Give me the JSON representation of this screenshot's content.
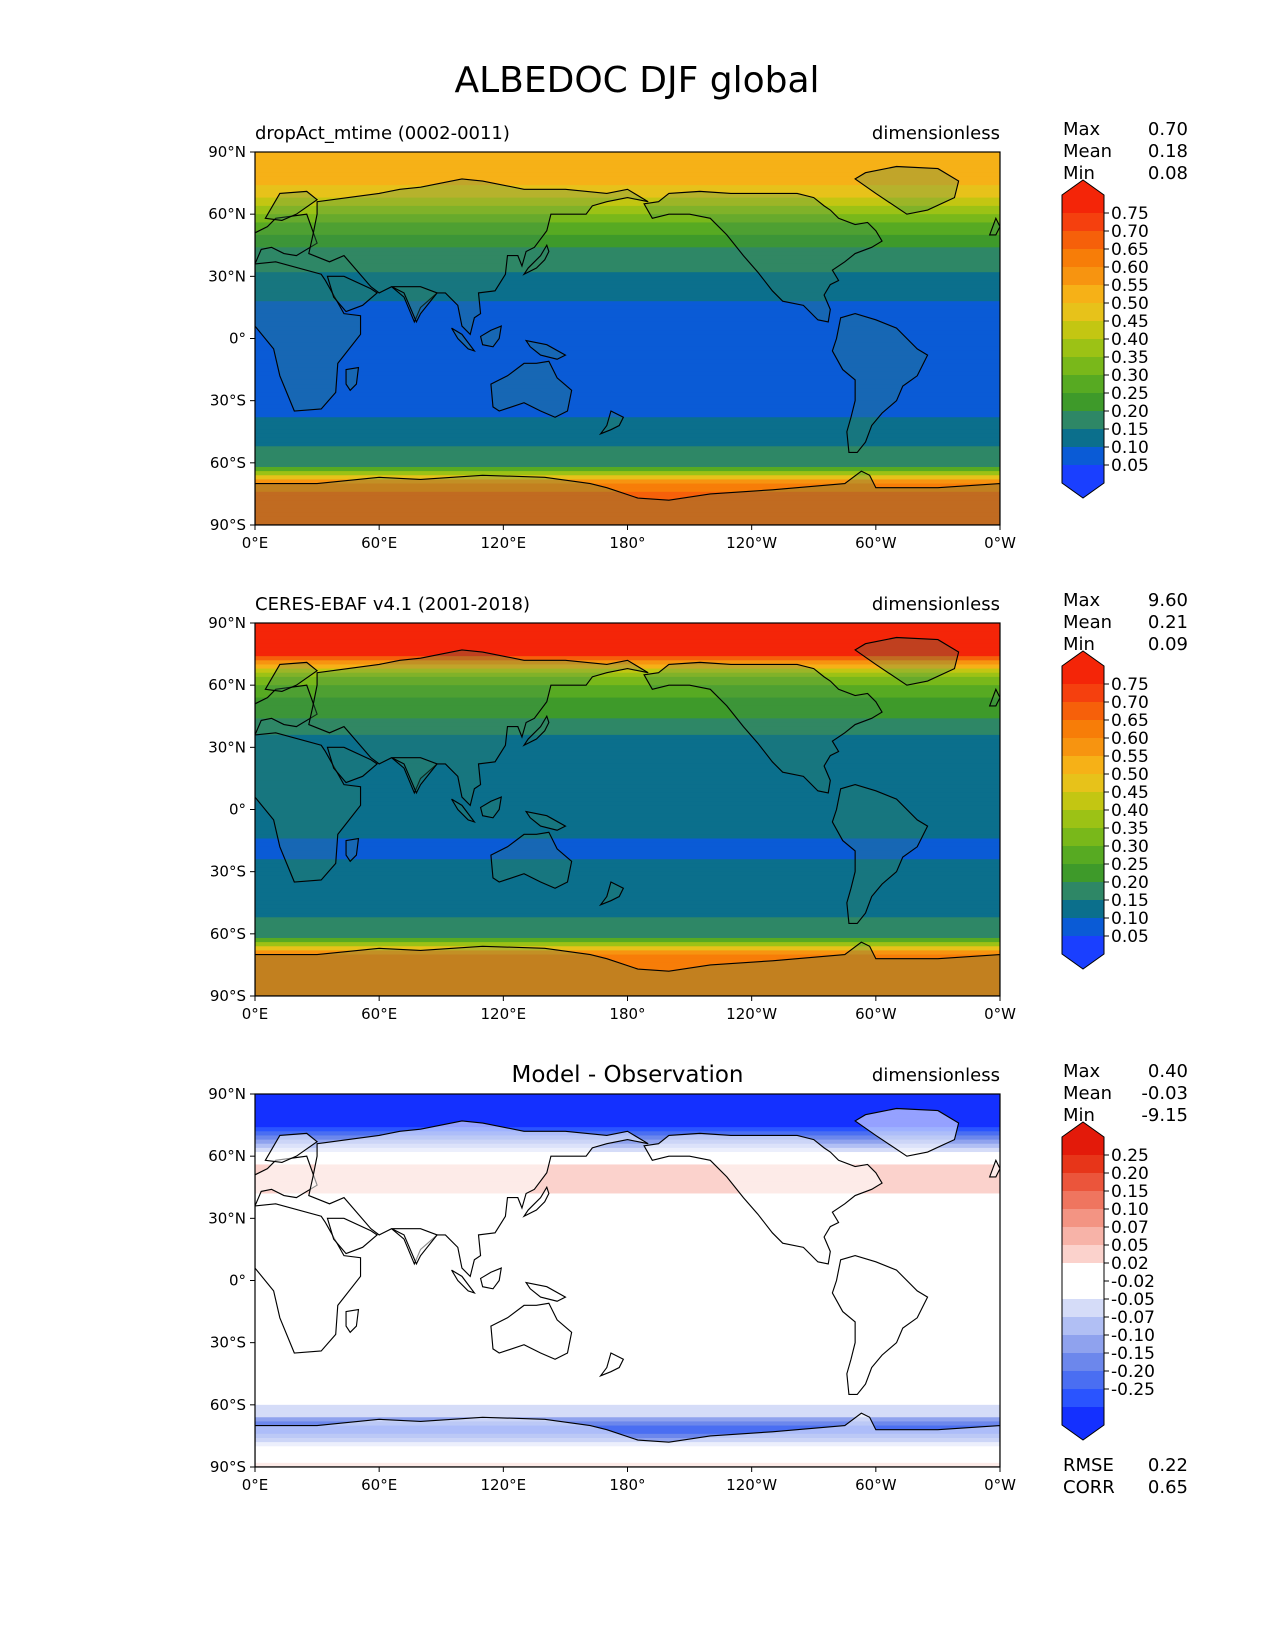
{
  "figure_title": "ALBEDOC DJF global",
  "colors": {
    "model_levels": [
      "#1a3fff",
      "#0a5bd6",
      "#0b6f8c",
      "#2e8766",
      "#3e9a2a",
      "#57aa22",
      "#79b81a",
      "#9cc215",
      "#c3c612",
      "#e7c21a",
      "#f6b117",
      "#f79410",
      "#f77d08",
      "#f6600a",
      "#f5400e",
      "#f42508"
    ],
    "diff_levels": [
      "#1430ff",
      "#2a54ff",
      "#4a6ef2",
      "#6c87ec",
      "#8fa2ee",
      "#b1bff4",
      "#d5dcf8",
      "#ffffff",
      "#ffffff",
      "#fbd2cc",
      "#f7b3a8",
      "#f39483",
      "#ef755f",
      "#eb553b",
      "#e73519",
      "#e31a0a"
    ],
    "land_outline": "#000000"
  },
  "chart_data": [
    {
      "type": "heatmap",
      "title_left": "dropAct_mtime (0002-0011)",
      "title_right": "dimensionless",
      "x_ticks": [
        "0°E",
        "60°E",
        "120°E",
        "180°",
        "120°W",
        "60°W",
        "0°W"
      ],
      "y_ticks": [
        "90°N",
        "60°N",
        "30°N",
        "0°",
        "30°S",
        "60°S",
        "90°S"
      ],
      "stats": [
        {
          "label": "Max",
          "value": "0.70"
        },
        {
          "label": "Mean",
          "value": "0.18"
        },
        {
          "label": "Min",
          "value": "0.08"
        }
      ],
      "colorbar_ticks": [
        "0.75",
        "0.70",
        "0.65",
        "0.60",
        "0.55",
        "0.50",
        "0.45",
        "0.40",
        "0.35",
        "0.30",
        "0.25",
        "0.20",
        "0.15",
        "0.10",
        "0.05"
      ],
      "colorbar_extend": "both",
      "zonal_mean_profile": {
        "lat": [
          -90,
          -80,
          -70,
          -62,
          -55,
          -45,
          -35,
          -20,
          0,
          15,
          25,
          35,
          45,
          55,
          65,
          75,
          82
        ],
        "value": [
          0.66,
          0.67,
          0.64,
          0.2,
          0.16,
          0.12,
          0.09,
          0.08,
          0.08,
          0.09,
          0.12,
          0.16,
          0.2,
          0.3,
          0.42,
          0.5,
          0.52
        ]
      }
    },
    {
      "type": "heatmap",
      "title_left": "CERES-EBAF v4.1 (2001-2018)",
      "title_right": "dimensionless",
      "x_ticks": [
        "0°E",
        "60°E",
        "120°E",
        "180°",
        "120°W",
        "60°W",
        "0°W"
      ],
      "y_ticks": [
        "90°N",
        "60°N",
        "30°N",
        "0°",
        "30°S",
        "60°S",
        "90°S"
      ],
      "stats": [
        {
          "label": "Max",
          "value": "9.60"
        },
        {
          "label": "Mean",
          "value": "0.21"
        },
        {
          "label": "Min",
          "value": "0.09"
        }
      ],
      "colorbar_ticks": [
        "0.75",
        "0.70",
        "0.65",
        "0.60",
        "0.55",
        "0.50",
        "0.45",
        "0.40",
        "0.35",
        "0.30",
        "0.25",
        "0.20",
        "0.15",
        "0.10",
        "0.05"
      ],
      "colorbar_extend": "both",
      "zonal_mean_profile": {
        "lat": [
          -90,
          -80,
          -70,
          -62,
          -55,
          -45,
          -35,
          -20,
          0,
          15,
          25,
          35,
          45,
          55,
          65,
          75,
          82
        ],
        "value": [
          0.63,
          0.63,
          0.62,
          0.2,
          0.16,
          0.13,
          0.12,
          0.09,
          0.12,
          0.12,
          0.13,
          0.15,
          0.2,
          0.26,
          0.36,
          0.75,
          0.78
        ]
      }
    },
    {
      "type": "heatmap",
      "title_center": "Model - Observation",
      "title_right": "dimensionless",
      "x_ticks": [
        "0°E",
        "60°E",
        "120°E",
        "180°",
        "120°W",
        "60°W",
        "0°W"
      ],
      "y_ticks": [
        "90°N",
        "60°N",
        "30°N",
        "0°",
        "30°S",
        "60°S",
        "90°S"
      ],
      "stats": [
        {
          "label": "Max",
          "value": "0.40"
        },
        {
          "label": "Mean",
          "value": "-0.03"
        },
        {
          "label": "Min",
          "value": "-9.15"
        }
      ],
      "colorbar_ticks": [
        "0.25",
        "0.20",
        "0.15",
        "0.10",
        "0.07",
        "0.05",
        "0.02",
        "-0.02",
        "-0.05",
        "-0.07",
        "-0.10",
        "-0.15",
        "-0.20",
        "-0.25"
      ],
      "colorbar_extend": "both",
      "metrics": [
        {
          "label": "RMSE",
          "value": "0.22"
        },
        {
          "label": "CORR",
          "value": "0.65"
        }
      ],
      "zonal_mean_profile": {
        "lat": [
          -90,
          -80,
          -72,
          -65,
          -55,
          -30,
          0,
          30,
          55,
          65,
          75,
          82
        ],
        "value": [
          0.03,
          -0.02,
          -0.2,
          -0.04,
          0.0,
          0.0,
          0.0,
          0.0,
          0.04,
          -0.06,
          -0.26,
          -0.26
        ]
      }
    }
  ]
}
